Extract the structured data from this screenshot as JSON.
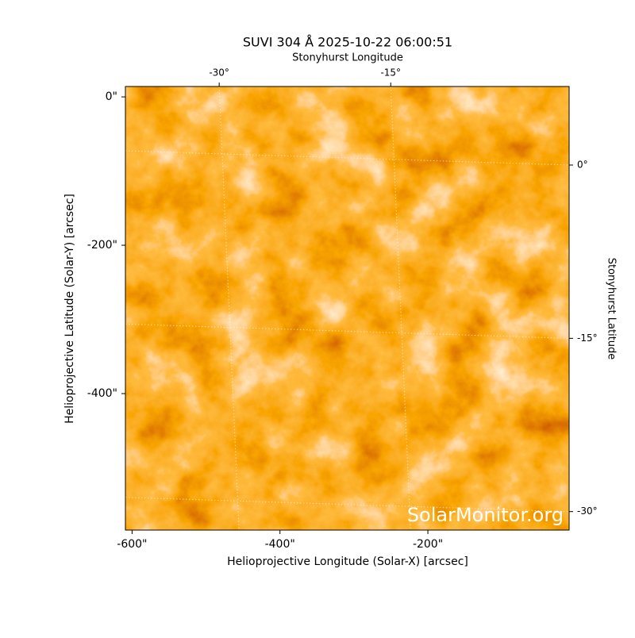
{
  "chart_data": {
    "type": "image",
    "title": "SUVI 304 Å 2025-10-22 06:00:51",
    "xlabel": "Helioprojective Longitude (Solar-X) [arcsec]",
    "ylabel": "Helioprojective Latitude (Solar-Y) [arcsec]",
    "x2label": "Stonyhurst Longitude",
    "y2label": "Stonyhurst Latitude",
    "watermark": "SolarMonitor.org",
    "xlim": [
      -609,
      -9
    ],
    "ylim": [
      -584,
      14
    ],
    "xticks": [
      {
        "value": -600,
        "label": "-600\""
      },
      {
        "value": -400,
        "label": "-400\""
      },
      {
        "value": -200,
        "label": "-200\""
      }
    ],
    "yticks": [
      {
        "value": 0,
        "label": "0\""
      },
      {
        "value": -200,
        "label": "-200\""
      },
      {
        "value": -400,
        "label": "-400\""
      }
    ],
    "x2lim": [
      -38.2,
      0.6
    ],
    "x2ticks": [
      {
        "value": -30,
        "label": "-30°"
      },
      {
        "value": -15,
        "label": "-15°"
      }
    ],
    "y2lim": [
      -31.6,
      6.8
    ],
    "y2ticks": [
      {
        "value": 0,
        "label": "0°"
      },
      {
        "value": -15,
        "label": "-15°"
      },
      {
        "value": -30,
        "label": "-30°"
      }
    ],
    "grid": true
  }
}
